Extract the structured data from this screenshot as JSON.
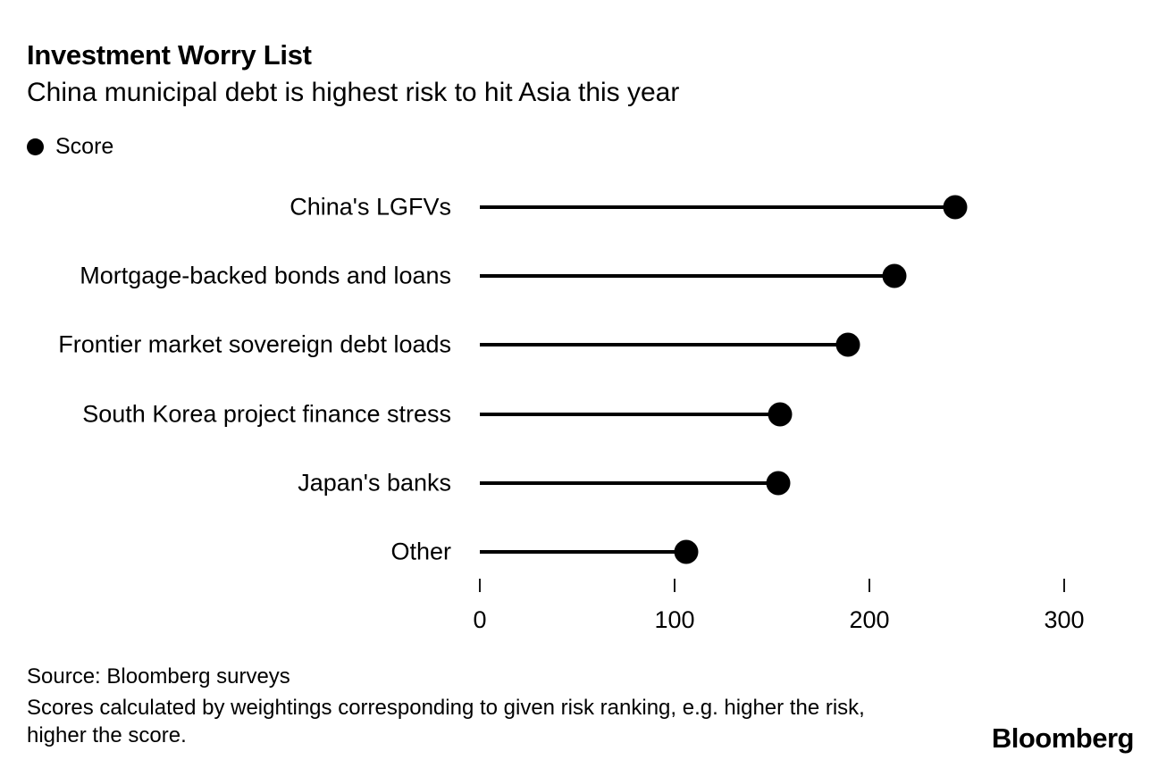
{
  "chart_data": {
    "type": "bar",
    "style": "lollipop",
    "orientation": "horizontal",
    "title": "Investment Worry List",
    "subtitle": "China municipal debt is highest risk to hit Asia this year",
    "categories": [
      "China's LGFVs",
      "Mortgage-backed bonds and loans",
      "Frontier market sovereign debt loads",
      "South Korea project finance stress",
      "Japan's banks",
      "Other"
    ],
    "series": [
      {
        "name": "Score",
        "values": [
          244,
          213,
          189,
          154,
          153,
          106
        ]
      }
    ],
    "xlabel": "",
    "ylabel": "",
    "xlim": [
      0,
      300
    ],
    "x_ticks": [
      0,
      100,
      200,
      300
    ],
    "grid": false,
    "legend_position": "top-left",
    "marker_color": "#000000"
  },
  "footer": {
    "source": "Source: Bloomberg surveys",
    "note": "Scores calculated by weightings corresponding to given risk ranking, e.g. higher the risk, higher the score.",
    "logo": "Bloomberg"
  }
}
